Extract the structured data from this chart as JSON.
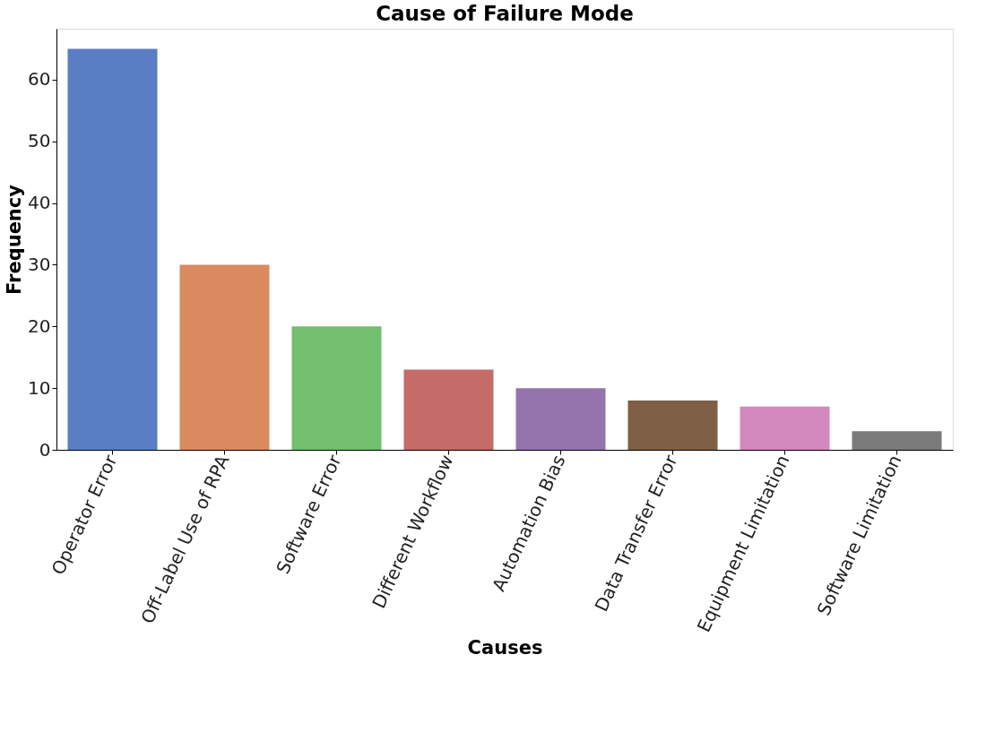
{
  "chart_data": {
    "type": "bar",
    "title": "Cause of Failure Mode",
    "xlabel": "Causes",
    "ylabel": "Frequency",
    "categories": [
      "Operator Error",
      "Off-Label Use of RPA",
      "Software Error",
      "Different Workflow",
      "Automation Bias",
      "Data Transfer Error",
      "Equipment Limitation",
      "Software Limitation"
    ],
    "values": [
      65,
      30,
      20,
      13,
      10,
      8,
      7,
      3
    ],
    "colors": [
      "#5a7ec4",
      "#d98a5e",
      "#72bf70",
      "#c56b68",
      "#9574ad",
      "#7f5f45",
      "#d388be",
      "#7a7a7a"
    ],
    "ylim": [
      0,
      68.25
    ],
    "yticks": [
      0,
      10,
      20,
      30,
      40,
      50,
      60
    ],
    "grid": false,
    "legend": false
  }
}
